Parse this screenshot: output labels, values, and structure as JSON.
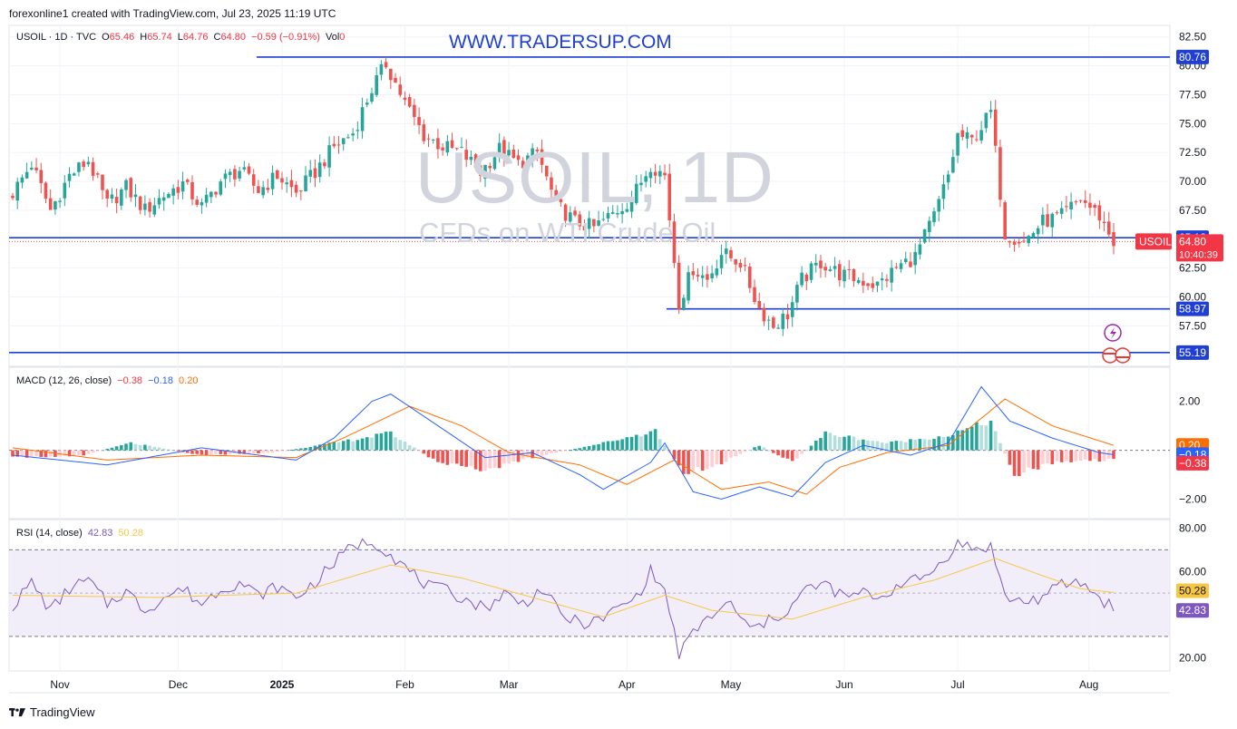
{
  "header": {
    "text": "forexonline1 created with TradingView.com, Jul 23, 2025 11:19 UTC"
  },
  "site_url": "WWW.TRADERSUP.COM",
  "watermark": {
    "title": "USOIL, 1D",
    "subtitle": "CFDs on WTI Crude Oil"
  },
  "legend": {
    "symbol": "USOIL · 1D · TVC",
    "o_label": "O",
    "o": "65.46",
    "h_label": "H",
    "h": "65.74",
    "l_label": "L",
    "l": "64.76",
    "c_label": "C",
    "c": "64.80",
    "change": "−0.59 (−0.91%)",
    "vol_label": "Vol",
    "vol": "0"
  },
  "macd_legend": {
    "label": "MACD (12, 26, close)",
    "hist": "−0.38",
    "macd": "−0.18",
    "signal": "0.20"
  },
  "rsi_legend": {
    "label": "RSI (14, close)",
    "rsi": "42.83",
    "ma": "50.28"
  },
  "footer": {
    "brand": "TradingView"
  },
  "colors": {
    "up": "#26a69a",
    "down": "#ef5350",
    "level_line": "#1f3fd6",
    "macd": "#2962ff",
    "signal": "#ff6d00",
    "rsi": "#7e57c2",
    "rsi_ma": "#f7c744"
  },
  "chart_data": [
    {
      "type": "candlestick",
      "symbol": "USOIL",
      "ylim": [
        54,
        83.5
      ],
      "y_ticks": [
        "82.50",
        "80.00",
        "77.50",
        "75.00",
        "72.50",
        "70.00",
        "67.50",
        "62.50",
        "60.00",
        "57.50"
      ],
      "price_badges": [
        {
          "label": "80.76",
          "value": 80.76
        },
        {
          "label": "65.13",
          "value": 65.13
        },
        {
          "label": "58.97",
          "value": 58.97
        },
        {
          "label": "55.19",
          "value": 55.19
        }
      ],
      "current": {
        "symbol": "USOIL",
        "price": "64.80",
        "value": 64.8,
        "countdown": "10:40:39"
      },
      "x_labels": [
        "Nov",
        "Dec",
        "2025",
        "Feb",
        "Mar",
        "Apr",
        "May",
        "Jun",
        "Jul",
        "Aug"
      ],
      "horizontal_levels": [
        80.76,
        65.13,
        58.97,
        55.19
      ],
      "close_path": [
        [
          0,
          69.0
        ],
        [
          4,
          71.5
        ],
        [
          8,
          67.5
        ],
        [
          12,
          70.5
        ],
        [
          16,
          71.8
        ],
        [
          20,
          68.0
        ],
        [
          24,
          69.5
        ],
        [
          28,
          67.5
        ],
        [
          32,
          68.8
        ],
        [
          36,
          69.8
        ],
        [
          40,
          67.8
        ],
        [
          44,
          70.0
        ],
        [
          48,
          71.0
        ],
        [
          52,
          69.2
        ],
        [
          56,
          70.5
        ],
        [
          60,
          69.0
        ],
        [
          64,
          70.8
        ],
        [
          68,
          73.0
        ],
        [
          72,
          74.2
        ],
        [
          76,
          78.0
        ],
        [
          79,
          80.2
        ],
        [
          83,
          76.8
        ],
        [
          87,
          74.0
        ],
        [
          91,
          73.0
        ],
        [
          95,
          72.5
        ],
        [
          99,
          70.8
        ],
        [
          103,
          72.8
        ],
        [
          107,
          71.5
        ],
        [
          111,
          72.5
        ],
        [
          115,
          68.0
        ],
        [
          119,
          66.5
        ],
        [
          123,
          66.0
        ],
        [
          127,
          67.2
        ],
        [
          131,
          68.5
        ],
        [
          135,
          71.5
        ],
        [
          138,
          70.5
        ],
        [
          141,
          59.5
        ],
        [
          144,
          62.5
        ],
        [
          147,
          61.5
        ],
        [
          150,
          63.8
        ],
        [
          154,
          63.0
        ],
        [
          158,
          59.0
        ],
        [
          161,
          57.5
        ],
        [
          164,
          58.5
        ],
        [
          167,
          61.5
        ],
        [
          171,
          63.0
        ],
        [
          175,
          62.0
        ],
        [
          179,
          61.5
        ],
        [
          183,
          61.0
        ],
        [
          187,
          62.5
        ],
        [
          191,
          63.5
        ],
        [
          195,
          67.0
        ],
        [
          198,
          70.5
        ],
        [
          200,
          74.0
        ],
        [
          203,
          73.5
        ],
        [
          207,
          76.0
        ],
        [
          210,
          65.5
        ],
        [
          214,
          64.8
        ],
        [
          218,
          66.5
        ],
        [
          222,
          67.0
        ],
        [
          226,
          68.5
        ],
        [
          230,
          67.0
        ],
        [
          233,
          64.8
        ]
      ],
      "last_index": 233
    },
    {
      "type": "macd",
      "ylim": [
        -2.8,
        3.4
      ],
      "y_ticks": [
        "2.00",
        "−2.00"
      ],
      "badges": [
        {
          "label": "0.20",
          "value": 0.2,
          "color": "#ff6d00"
        },
        {
          "label": "−0.18",
          "value": -0.18,
          "color": "#2962ff"
        },
        {
          "label": "−0.38",
          "value": -0.38,
          "color": "#f23645"
        }
      ],
      "macd_path": [
        [
          0,
          -0.2
        ],
        [
          20,
          -0.6
        ],
        [
          40,
          0.1
        ],
        [
          60,
          -0.4
        ],
        [
          68,
          0.5
        ],
        [
          76,
          2.0
        ],
        [
          80,
          2.3
        ],
        [
          90,
          1.0
        ],
        [
          100,
          -0.3
        ],
        [
          110,
          -0.1
        ],
        [
          120,
          -1.0
        ],
        [
          125,
          -1.6
        ],
        [
          135,
          -0.5
        ],
        [
          138,
          0.3
        ],
        [
          144,
          -1.7
        ],
        [
          150,
          -2.0
        ],
        [
          158,
          -1.5
        ],
        [
          165,
          -1.9
        ],
        [
          172,
          -0.5
        ],
        [
          180,
          0.2
        ],
        [
          190,
          -0.2
        ],
        [
          198,
          0.3
        ],
        [
          205,
          2.6
        ],
        [
          211,
          1.2
        ],
        [
          220,
          0.5
        ],
        [
          230,
          -0.1
        ],
        [
          233,
          -0.18
        ]
      ],
      "signal_path": [
        [
          0,
          0.1
        ],
        [
          20,
          -0.4
        ],
        [
          40,
          -0.2
        ],
        [
          60,
          -0.3
        ],
        [
          70,
          0.5
        ],
        [
          84,
          1.8
        ],
        [
          95,
          1.0
        ],
        [
          105,
          -0.1
        ],
        [
          120,
          -0.6
        ],
        [
          130,
          -1.4
        ],
        [
          140,
          -0.4
        ],
        [
          150,
          -1.6
        ],
        [
          160,
          -1.3
        ],
        [
          168,
          -1.8
        ],
        [
          175,
          -0.7
        ],
        [
          185,
          -0.1
        ],
        [
          198,
          0.2
        ],
        [
          210,
          2.1
        ],
        [
          220,
          1.0
        ],
        [
          233,
          0.2
        ]
      ],
      "hist_path": [
        [
          0,
          -0.3
        ],
        [
          15,
          -0.2
        ],
        [
          25,
          0.3
        ],
        [
          40,
          -0.2
        ],
        [
          55,
          -0.1
        ],
        [
          68,
          0.3
        ],
        [
          80,
          0.7
        ],
        [
          90,
          -0.5
        ],
        [
          100,
          -0.8
        ],
        [
          110,
          -0.3
        ],
        [
          125,
          0.3
        ],
        [
          136,
          0.8
        ],
        [
          142,
          -1.0
        ],
        [
          150,
          -0.5
        ],
        [
          158,
          0.2
        ],
        [
          165,
          -0.5
        ],
        [
          172,
          0.7
        ],
        [
          185,
          0.3
        ],
        [
          198,
          0.6
        ],
        [
          207,
          1.2
        ],
        [
          212,
          -1.0
        ],
        [
          220,
          -0.5
        ],
        [
          233,
          -0.38
        ]
      ]
    },
    {
      "type": "rsi",
      "ylim": [
        14,
        84
      ],
      "y_ticks": [
        "80.00",
        "60.00",
        "20.00"
      ],
      "band": [
        30,
        70
      ],
      "midline": 50,
      "badges": [
        {
          "label": "50.28",
          "value": 50.28,
          "color": "#f7c744"
        },
        {
          "label": "42.83",
          "value": 42.83,
          "color": "#7e57c2"
        }
      ],
      "rsi_path": [
        [
          0,
          44
        ],
        [
          4,
          55
        ],
        [
          8,
          42
        ],
        [
          12,
          52
        ],
        [
          16,
          56
        ],
        [
          20,
          45
        ],
        [
          24,
          51
        ],
        [
          28,
          42
        ],
        [
          32,
          48
        ],
        [
          36,
          52
        ],
        [
          40,
          45
        ],
        [
          44,
          52
        ],
        [
          48,
          55
        ],
        [
          52,
          49
        ],
        [
          56,
          53
        ],
        [
          60,
          48
        ],
        [
          64,
          55
        ],
        [
          68,
          64
        ],
        [
          72,
          72
        ],
        [
          76,
          74
        ],
        [
          79,
          70
        ],
        [
          84,
          60
        ],
        [
          88,
          53
        ],
        [
          92,
          51
        ],
        [
          95,
          48
        ],
        [
          100,
          43
        ],
        [
          104,
          50
        ],
        [
          108,
          45
        ],
        [
          112,
          52
        ],
        [
          116,
          40
        ],
        [
          120,
          36
        ],
        [
          124,
          37
        ],
        [
          128,
          43
        ],
        [
          132,
          48
        ],
        [
          135,
          60
        ],
        [
          138,
          51
        ],
        [
          141,
          22
        ],
        [
          145,
          34
        ],
        [
          148,
          40
        ],
        [
          152,
          45
        ],
        [
          156,
          33
        ],
        [
          160,
          37
        ],
        [
          164,
          42
        ],
        [
          168,
          52
        ],
        [
          172,
          54
        ],
        [
          176,
          48
        ],
        [
          180,
          50
        ],
        [
          184,
          48
        ],
        [
          188,
          55
        ],
        [
          192,
          56
        ],
        [
          196,
          63
        ],
        [
          198,
          68
        ],
        [
          200,
          73
        ],
        [
          204,
          70
        ],
        [
          207,
          72
        ],
        [
          210,
          48
        ],
        [
          214,
          46
        ],
        [
          218,
          48
        ],
        [
          222,
          54
        ],
        [
          226,
          55
        ],
        [
          230,
          48
        ],
        [
          233,
          42.83
        ]
      ],
      "ma_path": [
        [
          0,
          49
        ],
        [
          30,
          48
        ],
        [
          60,
          50
        ],
        [
          80,
          63
        ],
        [
          95,
          57
        ],
        [
          110,
          48
        ],
        [
          125,
          39
        ],
        [
          138,
          49
        ],
        [
          148,
          42
        ],
        [
          165,
          38
        ],
        [
          180,
          48
        ],
        [
          195,
          56
        ],
        [
          208,
          66
        ],
        [
          218,
          58
        ],
        [
          226,
          52
        ],
        [
          233,
          50.28
        ]
      ]
    }
  ]
}
